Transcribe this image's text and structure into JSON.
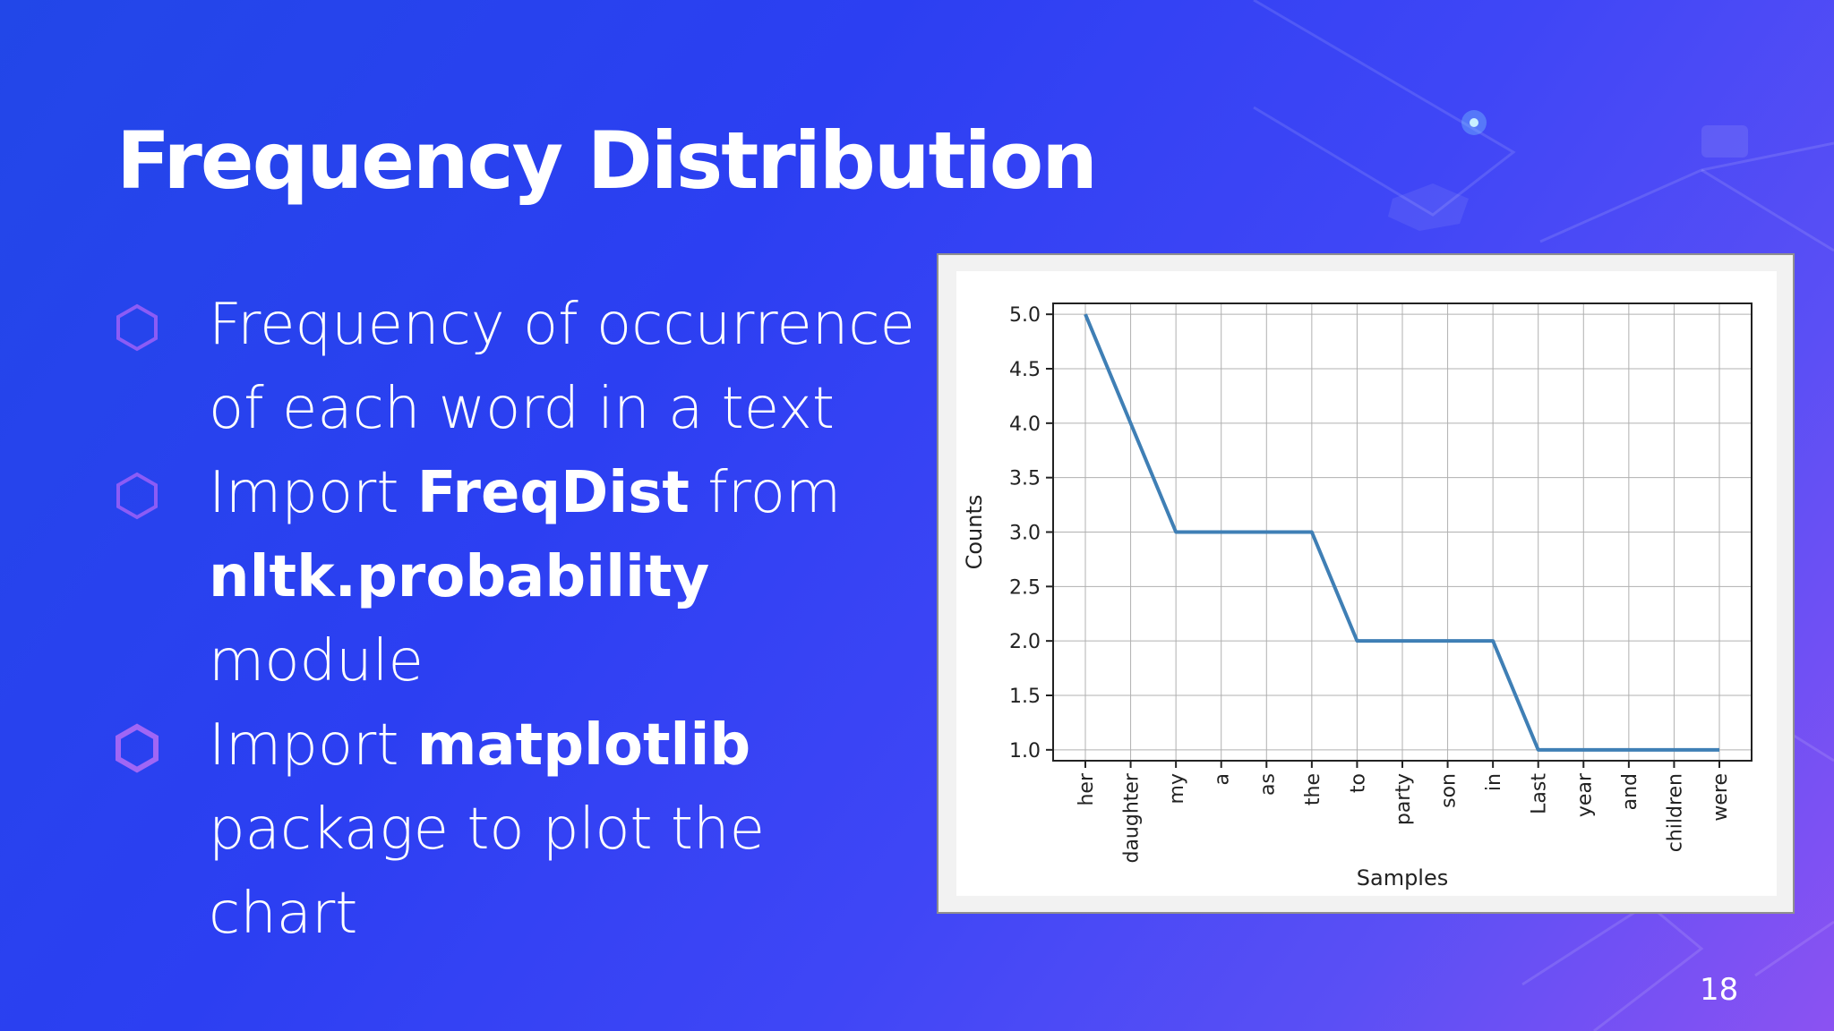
{
  "slide": {
    "title": "Frequency Distribution",
    "page_number": "18"
  },
  "bullets": [
    {
      "parts": [
        {
          "text": "Frequency of occurrence of each word in a text",
          "bold": false
        }
      ]
    },
    {
      "parts": [
        {
          "text": "Import ",
          "bold": false
        },
        {
          "text": "FreqDist",
          "bold": true
        },
        {
          "text": " from ",
          "bold": false
        },
        {
          "text": "nltk.probability",
          "bold": true
        },
        {
          "text": " module",
          "bold": false
        }
      ]
    },
    {
      "parts": [
        {
          "text": "Import ",
          "bold": false
        },
        {
          "text": "matplotlib",
          "bold": true
        },
        {
          "text": " package to plot the chart",
          "bold": false
        }
      ]
    }
  ],
  "colors": {
    "bullet_hex": "#8b5cf6",
    "bullet_hex_active": "#a066f5",
    "line": "#3f7fb5",
    "grid": "#b0b0b0"
  },
  "chart_data": {
    "type": "line",
    "categories": [
      "her",
      "daughter",
      "my",
      "a",
      "as",
      "the",
      "to",
      "party",
      "son",
      "in",
      "Last",
      "year",
      "and",
      "children",
      "were"
    ],
    "values": [
      5,
      4,
      3,
      3,
      3,
      3,
      2,
      2,
      2,
      2,
      1,
      1,
      1,
      1,
      1
    ],
    "yticks": [
      "1.0",
      "1.5",
      "2.0",
      "2.5",
      "3.0",
      "3.5",
      "4.0",
      "4.5",
      "5.0"
    ],
    "title": "",
    "xlabel": "Samples",
    "ylabel": "Counts",
    "ylim": [
      0.9,
      5.1
    ],
    "grid": true
  }
}
